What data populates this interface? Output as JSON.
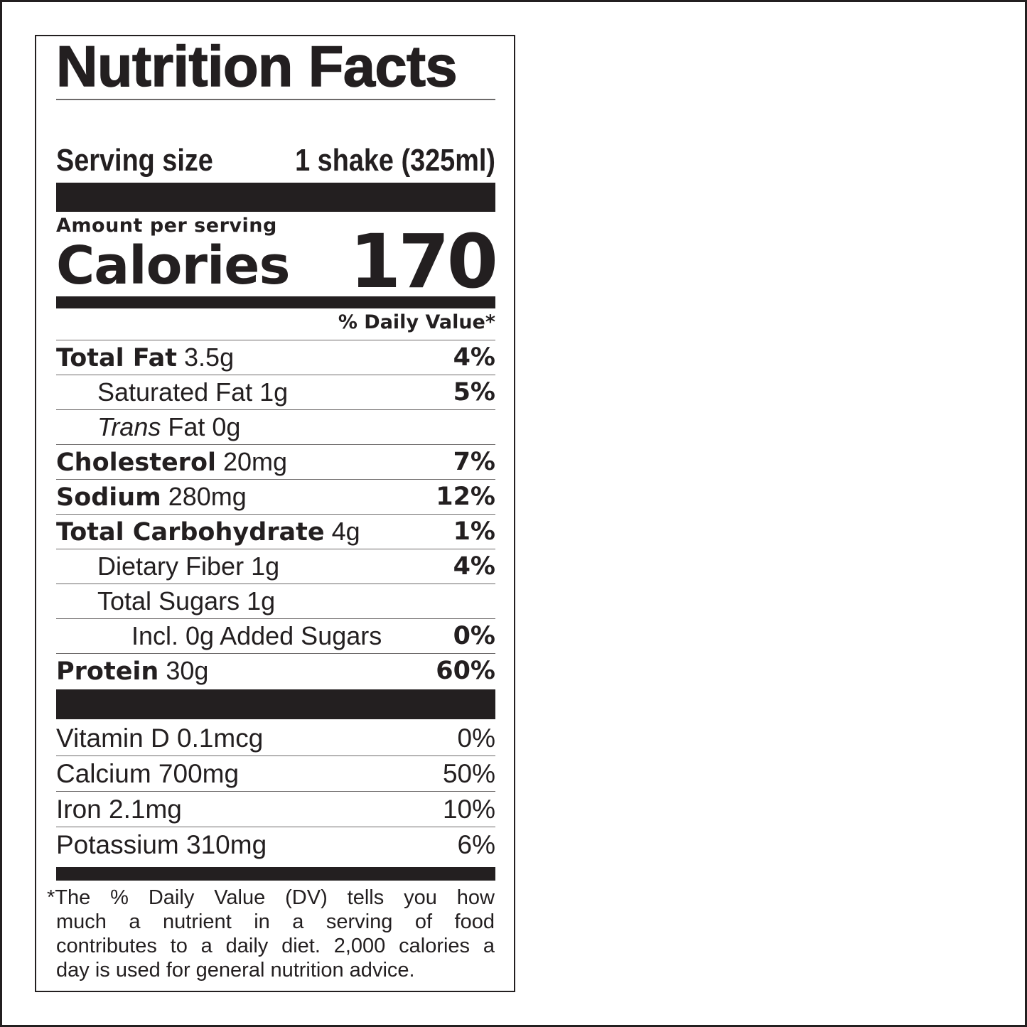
{
  "title": "Nutrition Facts",
  "serving": {
    "label": "Serving size",
    "value": "1 shake (325ml)"
  },
  "amount_per_serving": "Amount per serving",
  "calories": {
    "label": "Calories",
    "value": "170"
  },
  "daily_value_header": "% Daily Value*",
  "nutrients": [
    {
      "name": "Total Fat",
      "amount": "3.5g",
      "dv": "4%"
    },
    {
      "name": "Saturated Fat",
      "amount": "1g",
      "dv": "5%"
    },
    {
      "name_italic": "Trans",
      "name": "Fat",
      "amount": "0g",
      "dv": ""
    },
    {
      "name": "Cholesterol",
      "amount": "20mg",
      "dv": "7%"
    },
    {
      "name": "Sodium",
      "amount": "280mg",
      "dv": "12%"
    },
    {
      "name": "Total Carbohydrate",
      "amount": "4g",
      "dv": "1%"
    },
    {
      "name": "Dietary Fiber",
      "amount": "1g",
      "dv": "4%"
    },
    {
      "name": "Total Sugars",
      "amount": "1g",
      "dv": ""
    },
    {
      "name": "Incl. 0g Added Sugars",
      "amount": "",
      "dv": "0%"
    },
    {
      "name": "Protein",
      "amount": "30g",
      "dv": "60%"
    }
  ],
  "vitamins": [
    {
      "text": "Vitamin D 0.1mcg",
      "dv": "0%"
    },
    {
      "text": "Calcium 700mg",
      "dv": "50%"
    },
    {
      "text": "Iron 2.1mg",
      "dv": "10%"
    },
    {
      "text": "Potassium 310mg",
      "dv": "6%"
    }
  ],
  "footnote": {
    "lines": [
      "*The % Daily Value (DV) tells you how",
      "much a nutrient in a serving of food",
      "contributes to a daily diet. 2,000 calories a",
      "day is used for general nutrition advice."
    ]
  }
}
